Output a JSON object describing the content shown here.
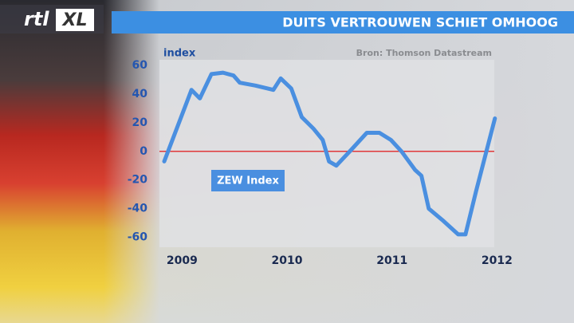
{
  "logo": [
    "rtl",
    "XL"
  ],
  "chart_data": {
    "type": "line",
    "title": "DUITS VERTROUWEN SCHIET OMHOOG",
    "y_label": "index",
    "source": "Bron: Thomson Datastream",
    "x": [
      2008.83,
      2009.09,
      2009.17,
      2009.28,
      2009.39,
      2009.49,
      2009.55,
      2009.7,
      2009.87,
      2009.94,
      2010.04,
      2010.14,
      2010.25,
      2010.34,
      2010.4,
      2010.47,
      2010.61,
      2010.76,
      2010.88,
      2010.99,
      2011.09,
      2011.22,
      2011.28,
      2011.35,
      2011.48,
      2011.63,
      2011.7,
      2011.8,
      2011.98
    ],
    "series": [
      {
        "name": "ZEW Index",
        "color": "#4a8fe0",
        "values": [
          -7,
          43,
          37,
          54,
          55,
          53,
          48,
          46,
          43,
          51,
          44,
          24,
          16,
          8,
          -7,
          -10,
          1,
          13,
          13,
          8,
          0,
          -13,
          -17,
          -40,
          -48,
          -58,
          -58,
          -28,
          23
        ]
      }
    ],
    "xlim": [
      2008.8,
      2012.05
    ],
    "xticks": [
      2009,
      2010,
      2011,
      2012
    ],
    "ylim": [
      -67,
      64
    ],
    "yticks": [
      60,
      40,
      20,
      0,
      -20,
      -40,
      -60
    ],
    "zero_line_color": "#e0383a"
  }
}
